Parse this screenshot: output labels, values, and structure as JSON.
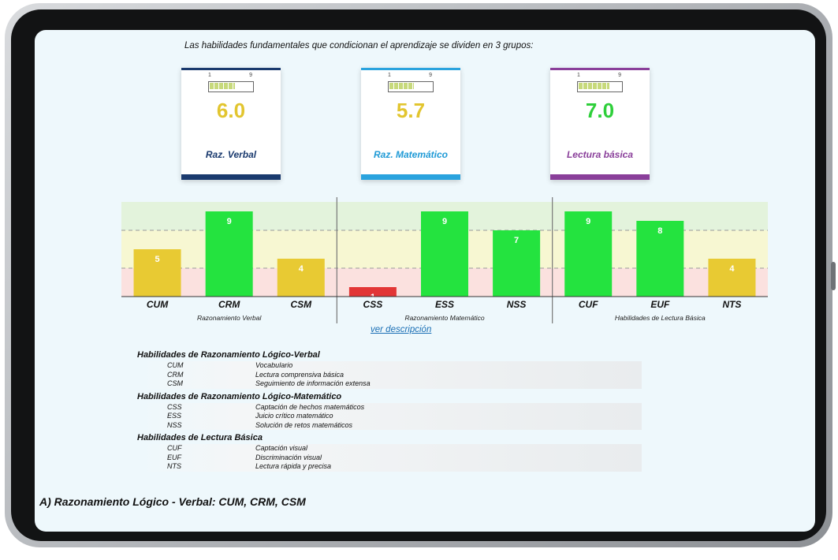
{
  "intro_text": "Las habilidades fundamentales que condicionan el aprendizaje se dividen en 3 grupos:",
  "score_cards": [
    {
      "value": "6.0",
      "label": "Raz. Verbal",
      "value_color": "#e2c52f",
      "label_color": "#1a3a6e",
      "accent": "#1a3a6e",
      "gauge_min": "1",
      "gauge_max": "9",
      "gauge_level": 0.62
    },
    {
      "value": "5.7",
      "label": "Raz. Matemático",
      "value_color": "#e2c52f",
      "label_color": "#1f9ad6",
      "accent": "#2aa3de",
      "gauge_min": "1",
      "gauge_max": "9",
      "gauge_level": 0.59
    },
    {
      "value": "7.0",
      "label": "Lectura básica",
      "value_color": "#2ecf3a",
      "label_color": "#8a3f9a",
      "accent": "#8a3f9a",
      "gauge_min": "1",
      "gauge_max": "9",
      "gauge_level": 0.75
    }
  ],
  "chart_data": {
    "type": "bar",
    "ylim": [
      0,
      10
    ],
    "bands": [
      {
        "from": 0,
        "to": 3,
        "color": "#fbe1df"
      },
      {
        "from": 3,
        "to": 7,
        "color": "#f7f7d2"
      },
      {
        "from": 7,
        "to": 10,
        "color": "#e3f3dc"
      }
    ],
    "groups": [
      {
        "label": "Razonamiento Verbal",
        "categories": [
          "CUM",
          "CRM",
          "CSM"
        ],
        "values": [
          5,
          9,
          4
        ]
      },
      {
        "label": "Razonamiento Matemático",
        "categories": [
          "CSS",
          "ESS",
          "NSS"
        ],
        "values": [
          1,
          9,
          7
        ]
      },
      {
        "label": "Habilidades de Lectura Básica",
        "categories": [
          "CUF",
          "EUF",
          "NTS"
        ],
        "values": [
          9,
          8,
          4
        ]
      }
    ],
    "colors": {
      "low": "#e23636",
      "mid": "#e8ca33",
      "high": "#24e33f"
    }
  },
  "link_text": "ver descripción",
  "legend_sections": [
    {
      "heading": "Habilidades de Razonamiento Lógico-Verbal",
      "rows": [
        {
          "code": "CUM",
          "desc": "Vocabulario"
        },
        {
          "code": "CRM",
          "desc": "Lectura comprensiva básica"
        },
        {
          "code": "CSM",
          "desc": "Seguimiento de información extensa"
        }
      ]
    },
    {
      "heading": "Habilidades de Razonamiento Lógico-Matemático",
      "rows": [
        {
          "code": "CSS",
          "desc": "Captación de hechos matemáticos"
        },
        {
          "code": "ESS",
          "desc": "Juicio crítico matemático"
        },
        {
          "code": "NSS",
          "desc": "Solución de retos matemáticos"
        }
      ]
    },
    {
      "heading": "Habilidades de Lectura Básica",
      "rows": [
        {
          "code": "CUF",
          "desc": "Captación visual"
        },
        {
          "code": "EUF",
          "desc": "Discriminación visual"
        },
        {
          "code": "NTS",
          "desc": "Lectura rápida y precisa"
        }
      ]
    }
  ],
  "section_title": "A) Razonamiento Lógico - Verbal: CUM, CRM, CSM"
}
